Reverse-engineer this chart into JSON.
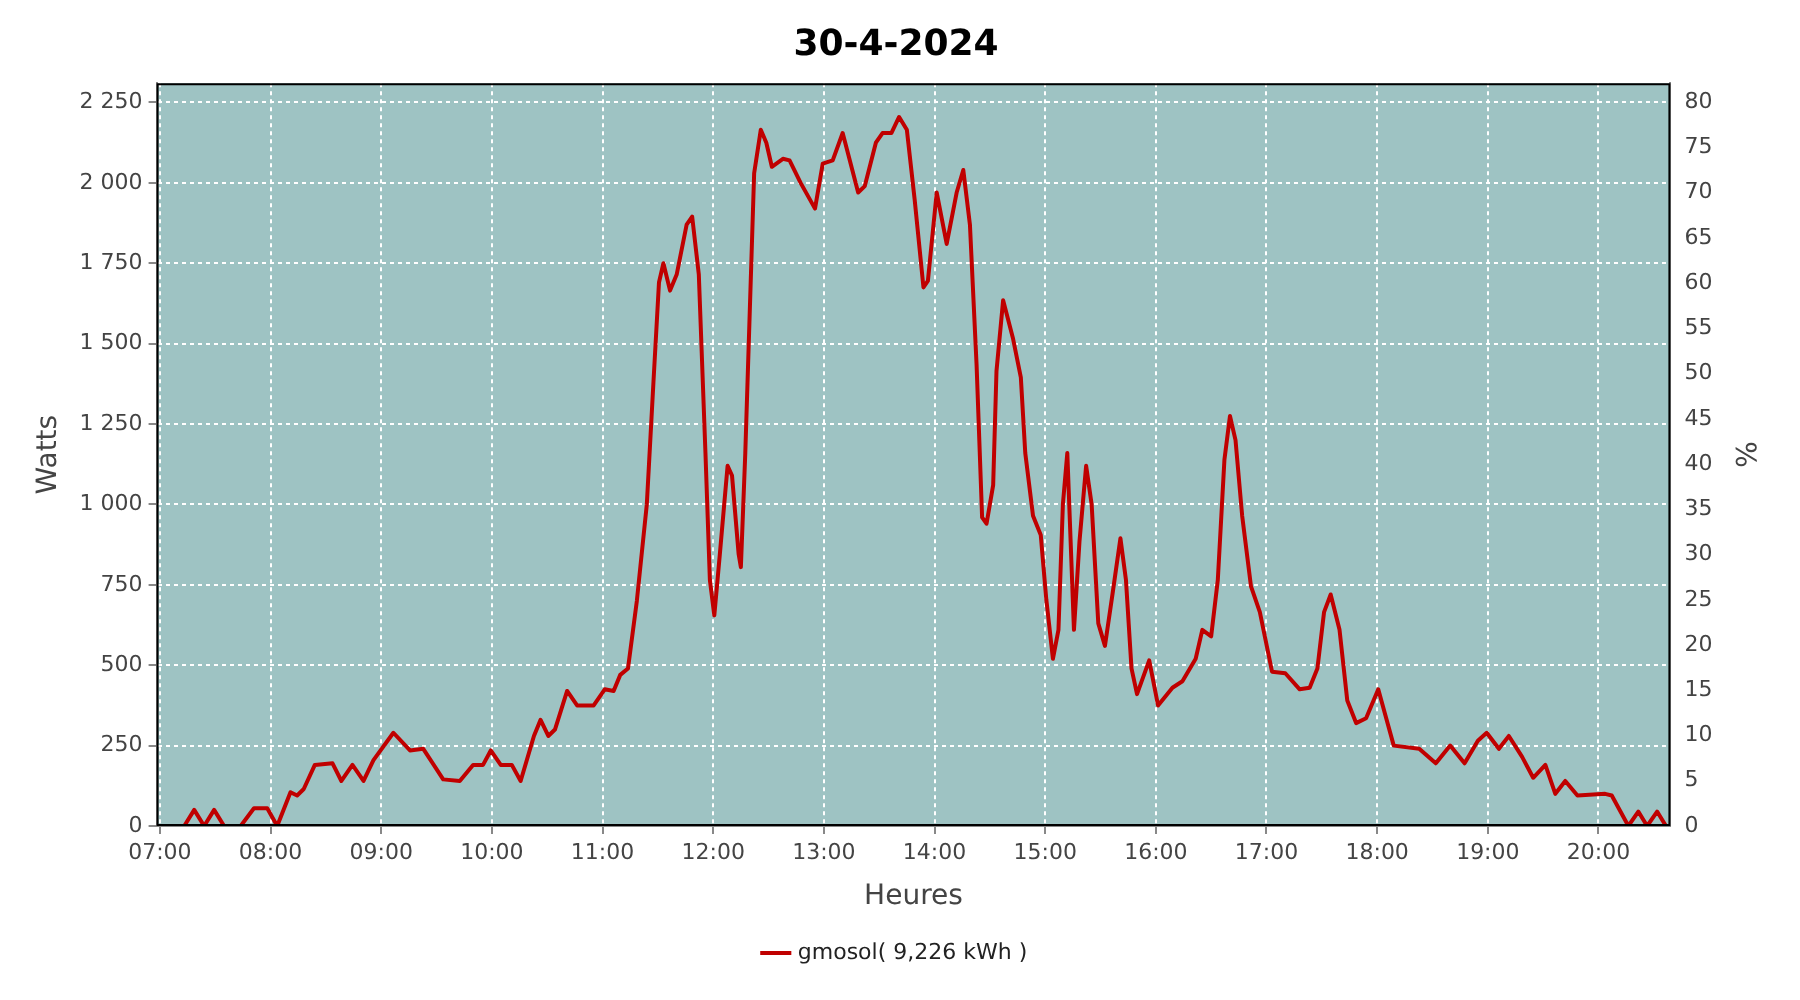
{
  "chart_data": {
    "type": "line",
    "title": "30-4-2024",
    "xlabel": "Heures",
    "ylabel": "Watts",
    "y2label": "%",
    "x": [
      7.22,
      7.31,
      7.4,
      7.49,
      7.58,
      7.73,
      7.85,
      7.97,
      8.06,
      8.18,
      8.24,
      8.3,
      8.4,
      8.56,
      8.64,
      8.74,
      8.84,
      8.93,
      9.11,
      9.26,
      9.38,
      9.56,
      9.71,
      9.83,
      9.92,
      9.99,
      10.08,
      10.18,
      10.26,
      10.38,
      10.44,
      10.51,
      10.57,
      10.68,
      10.77,
      10.92,
      11.02,
      11.1,
      11.16,
      11.23,
      11.31,
      11.4,
      11.46,
      11.51,
      11.55,
      11.61,
      11.67,
      11.76,
      11.81,
      11.87,
      11.93,
      11.97,
      12.01,
      12.06,
      12.13,
      12.17,
      12.23,
      12.25,
      12.29,
      12.33,
      12.37,
      12.43,
      12.48,
      12.53,
      12.63,
      12.69,
      12.79,
      12.92,
      12.99,
      13.08,
      13.17,
      13.31,
      13.37,
      13.47,
      13.53,
      13.61,
      13.68,
      13.75,
      13.82,
      13.9,
      13.94,
      14.02,
      14.11,
      14.2,
      14.26,
      14.32,
      14.38,
      14.43,
      14.47,
      14.53,
      14.56,
      14.62,
      14.71,
      14.78,
      14.82,
      14.89,
      14.96,
      15.01,
      15.07,
      15.12,
      15.16,
      15.2,
      15.26,
      15.31,
      15.37,
      15.42,
      15.48,
      15.54,
      15.61,
      15.68,
      15.73,
      15.78,
      15.83,
      15.94,
      16.02,
      16.15,
      16.24,
      16.36,
      16.42,
      16.5,
      16.56,
      16.62,
      16.67,
      16.72,
      16.78,
      16.86,
      16.94,
      17.05,
      17.17,
      17.3,
      17.39,
      17.46,
      17.52,
      17.58,
      17.66,
      17.73,
      17.81,
      17.9,
      18.01,
      18.07,
      18.15,
      18.38,
      18.53,
      18.66,
      18.79,
      18.91,
      18.99,
      19.1,
      19.19,
      19.31,
      19.41,
      19.52,
      19.61,
      19.7,
      19.81,
      20.06,
      20.12,
      20.27,
      20.36,
      20.44,
      20.53,
      20.61
    ],
    "series": [
      {
        "name": "gmosol( 9,226 kWh )",
        "color": "#c00000",
        "values": [
          0,
          50,
          0,
          50,
          0,
          0,
          55,
          55,
          0,
          105,
          95,
          115,
          190,
          195,
          140,
          190,
          140,
          205,
          290,
          235,
          240,
          145,
          140,
          190,
          190,
          235,
          190,
          190,
          140,
          280,
          330,
          280,
          300,
          420,
          375,
          375,
          425,
          420,
          470,
          490,
          700,
          1000,
          1380,
          1690,
          1750,
          1665,
          1715,
          1870,
          1895,
          1715,
          1160,
          765,
          655,
          845,
          1120,
          1090,
          845,
          805,
          1160,
          1595,
          2030,
          2165,
          2125,
          2050,
          2075,
          2070,
          2000,
          1920,
          2060,
          2070,
          2155,
          1970,
          1990,
          2125,
          2155,
          2155,
          2205,
          2165,
          1950,
          1675,
          1695,
          1970,
          1810,
          1970,
          2040,
          1870,
          1435,
          960,
          940,
          1060,
          1415,
          1635,
          1515,
          1395,
          1160,
          965,
          905,
          705,
          520,
          610,
          1000,
          1160,
          610,
          885,
          1120,
          1000,
          630,
          560,
          725,
          895,
          765,
          490,
          410,
          515,
          375,
          430,
          450,
          520,
          610,
          590,
          765,
          1140,
          1275,
          1200,
          965,
          745,
          665,
          480,
          475,
          425,
          430,
          490,
          665,
          720,
          610,
          390,
          320,
          335,
          425,
          350,
          250,
          240,
          195,
          250,
          195,
          265,
          290,
          240,
          280,
          215,
          150,
          190,
          100,
          140,
          95,
          100,
          95,
          0,
          45,
          0,
          45,
          0
        ]
      }
    ],
    "xlim": [
      6.97,
      20.65
    ],
    "xticks": [
      {
        "value": 7,
        "label": "07:00"
      },
      {
        "value": 8,
        "label": "08:00"
      },
      {
        "value": 9,
        "label": "09:00"
      },
      {
        "value": 10,
        "label": "10:00"
      },
      {
        "value": 11,
        "label": "11:00"
      },
      {
        "value": 12,
        "label": "12:00"
      },
      {
        "value": 13,
        "label": "13:00"
      },
      {
        "value": 14,
        "label": "14:00"
      },
      {
        "value": 15,
        "label": "15:00"
      },
      {
        "value": 16,
        "label": "16:00"
      },
      {
        "value": 17,
        "label": "17:00"
      },
      {
        "value": 18,
        "label": "18:00"
      },
      {
        "value": 19,
        "label": "19:00"
      },
      {
        "value": 20,
        "label": "20:00"
      }
    ],
    "ylim": [
      0,
      2310
    ],
    "yticks": [
      0,
      250,
      500,
      750,
      {
        "value": 1000,
        "label": "1 000"
      },
      {
        "value": 1250,
        "label": "1 250"
      },
      {
        "value": 1500,
        "label": "1 500"
      },
      {
        "value": 1750,
        "label": "1 750"
      },
      {
        "value": 2000,
        "label": "2 000"
      },
      {
        "value": 2250,
        "label": "2 250"
      }
    ],
    "y2lim": [
      0,
      82.1
    ],
    "y2ticks": [
      0,
      5,
      10,
      15,
      20,
      25,
      30,
      35,
      40,
      45,
      50,
      55,
      60,
      65,
      70,
      75,
      80
    ],
    "grid": true,
    "legend": "bottom",
    "marker": "none",
    "line_style": "solid"
  }
}
